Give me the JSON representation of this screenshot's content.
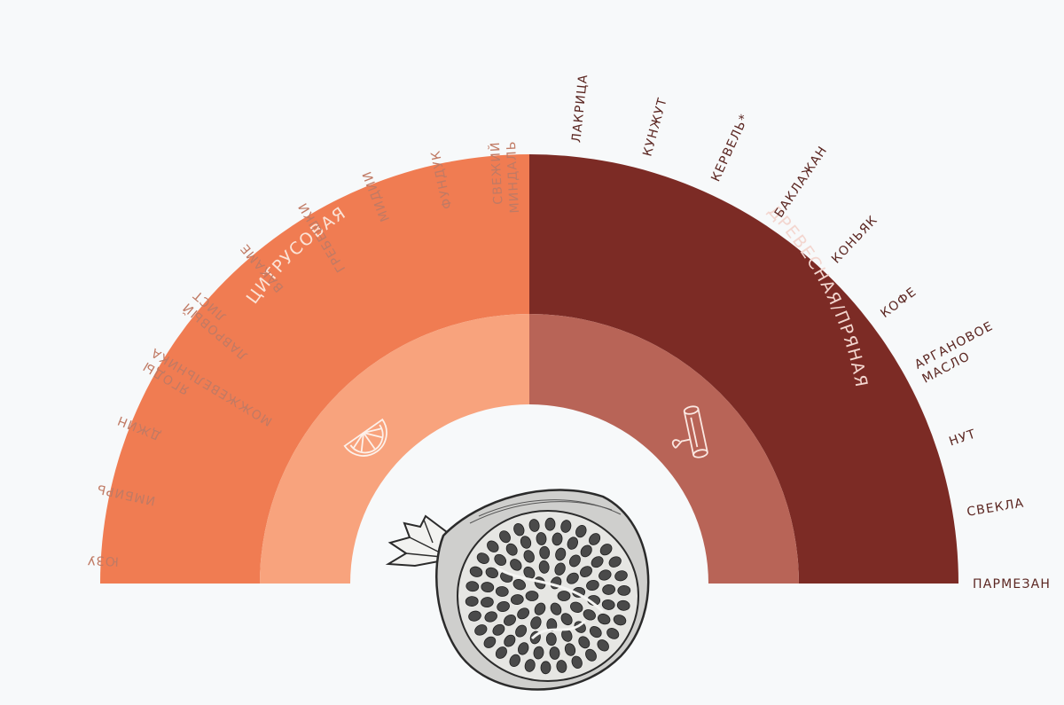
{
  "colors": {
    "left_outer": "#f07c52",
    "left_inner": "#f8a37d",
    "right_outer": "#7c2b25",
    "right_inner": "#b86457",
    "left_label": "#c07a64",
    "right_label": "#5b2621",
    "category_left": "#fbe3d6",
    "category_right": "#f3d6cf",
    "background": "#f7f9fa"
  },
  "categories": {
    "left": "ЦИТРУСОВАЯ",
    "right": "ДРЕВЕСНАЯ/ПРЯНАЯ"
  },
  "icons": {
    "left": "orange-slice-icon",
    "right": "cinnamon-stick-icon",
    "center": "pomegranate-illustration"
  },
  "left_labels": [
    [
      "ЮЗУ"
    ],
    [
      "ИМБИРЬ"
    ],
    [
      "ДЖИН"
    ],
    [
      "ЯГОДЫ",
      "МОЖЖЕВЕЛЬНИКА"
    ],
    [
      "ЛАВРОВЫЙ",
      "ЛИСТ"
    ],
    [
      "ВАКАМЕ"
    ],
    [
      "ГРЕБЕШКИ"
    ],
    [
      "МИДИИ"
    ],
    [
      "ФУНДУК"
    ],
    [
      "СВЕЖИЙ",
      "МИНДАЛЬ"
    ]
  ],
  "right_labels": [
    [
      "ЛАКРИЦА"
    ],
    [
      "КУНЖУТ"
    ],
    [
      "КЕРВЕЛЬ*"
    ],
    [
      "БАКЛАЖАН"
    ],
    [
      "КОНЬЯК"
    ],
    [
      "КОФЕ"
    ],
    [
      "АРГАНОВОЕ",
      "МАСЛО"
    ],
    [
      "НУТ"
    ],
    [
      "СВЕКЛА"
    ],
    [
      "ПАРМЕЗАН"
    ]
  ]
}
